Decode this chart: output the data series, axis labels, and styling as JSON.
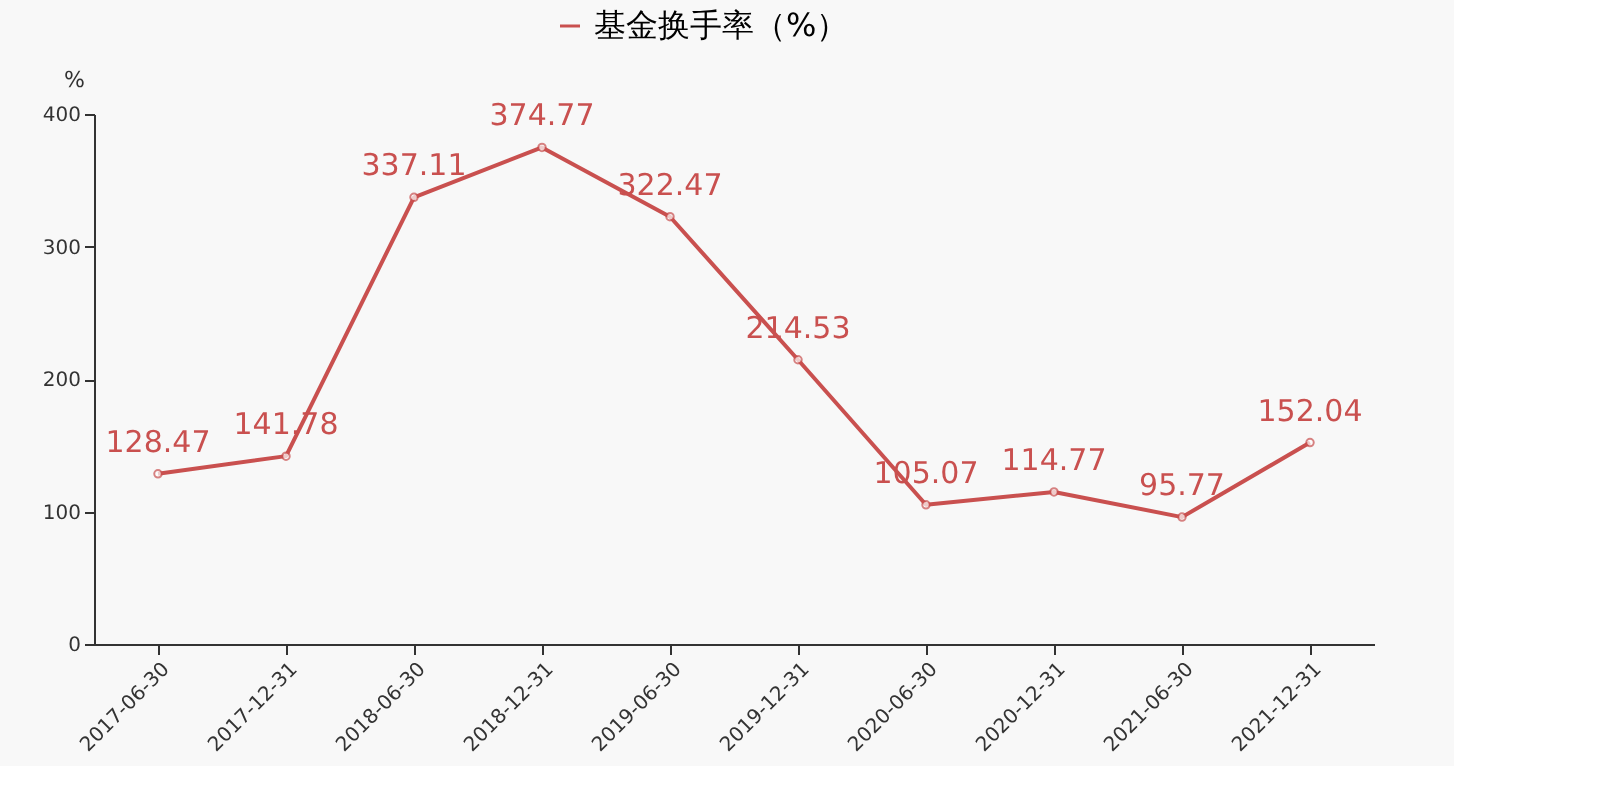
{
  "chart_data": {
    "type": "line",
    "ylabel": "%",
    "categories": [
      "2017-06-30",
      "2017-12-31",
      "2018-06-30",
      "2018-12-31",
      "2019-06-30",
      "2019-12-31",
      "2020-06-30",
      "2020-12-31",
      "2021-06-30",
      "2021-12-31"
    ],
    "series": [
      {
        "name": "基金换手率（%）",
        "color": "#c9504f",
        "values": [
          128.47,
          141.78,
          337.11,
          374.77,
          322.47,
          214.53,
          105.07,
          114.77,
          95.77,
          152.04
        ]
      }
    ],
    "ylim": [
      0,
      400
    ],
    "yticks": [
      0,
      100,
      200,
      300,
      400
    ],
    "grid": false,
    "legend": "top",
    "marker": "circle",
    "line_style": "solid",
    "data_labels": true
  }
}
